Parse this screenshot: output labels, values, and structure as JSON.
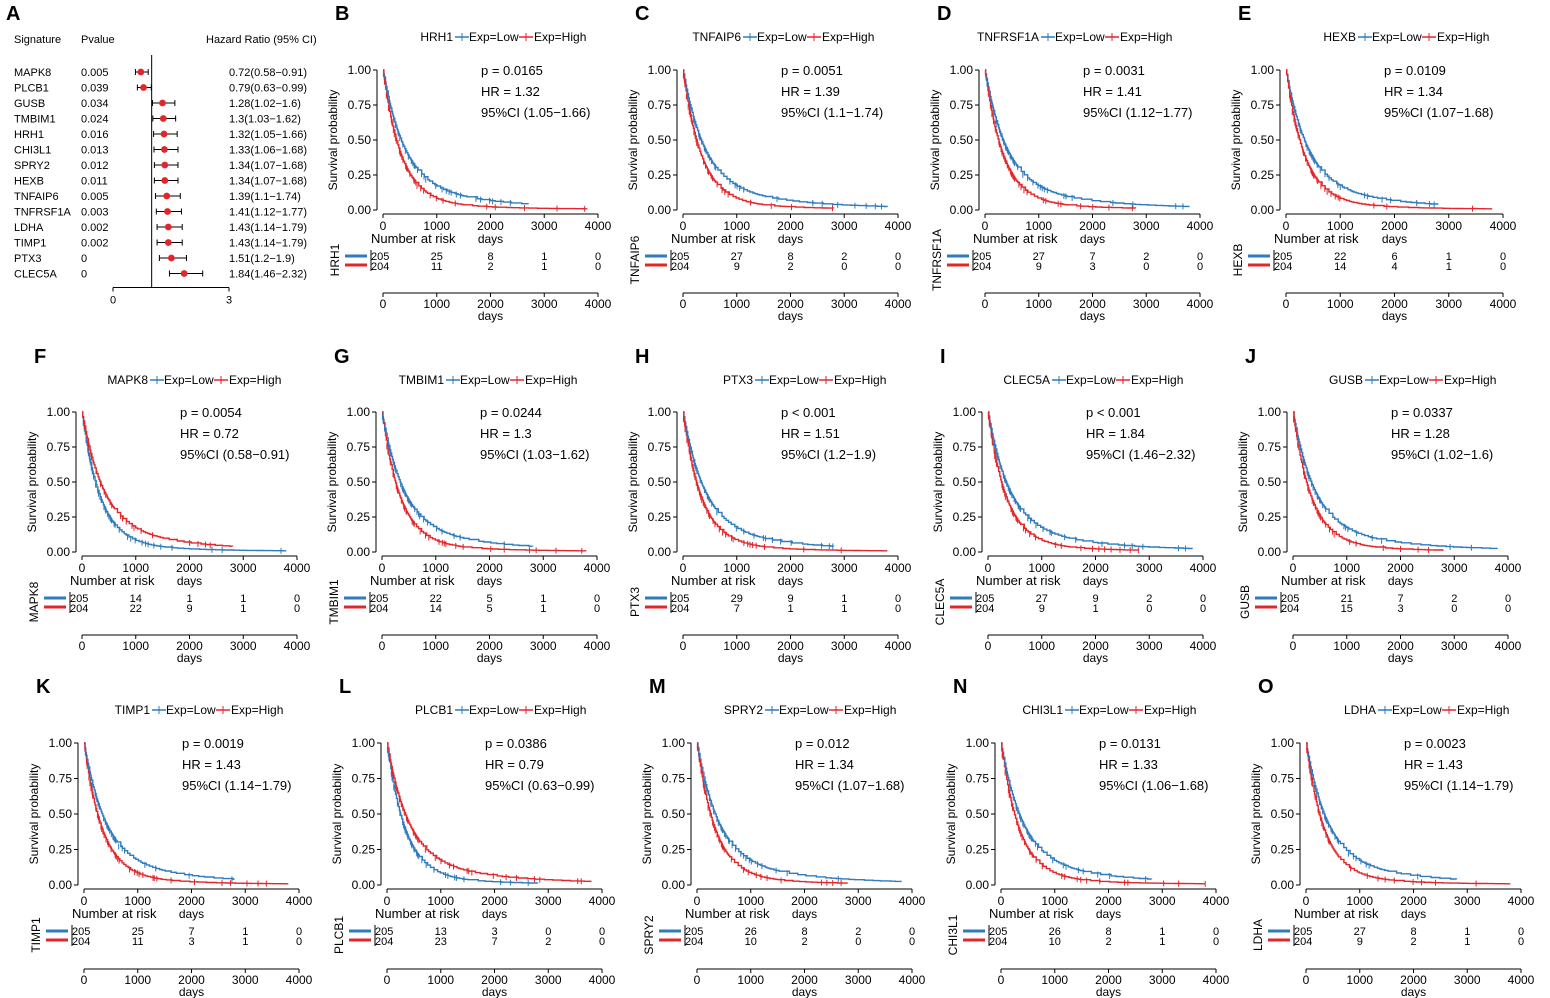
{
  "forest": {
    "letter": "A",
    "headers": {
      "signature": "Signature",
      "pvalue": "Pvalue",
      "hr": "Hazard Ratio (95% CI)"
    },
    "axis_ticks": [
      0,
      3
    ],
    "reference_line": 1,
    "rows": [
      {
        "signature": "MAPK8",
        "pvalue": "0.005",
        "hr_text": "0.72(0.58−0.91)",
        "hr": 0.72,
        "lo": 0.58,
        "hi": 0.91
      },
      {
        "signature": "PLCB1",
        "pvalue": "0.039",
        "hr_text": "0.79(0.63−0.99)",
        "hr": 0.79,
        "lo": 0.63,
        "hi": 0.99
      },
      {
        "signature": "GUSB",
        "pvalue": "0.034",
        "hr_text": "1.28(1.02−1.6)",
        "hr": 1.28,
        "lo": 1.02,
        "hi": 1.6
      },
      {
        "signature": "TMBIM1",
        "pvalue": "0.024",
        "hr_text": "1.3(1.03−1.62)",
        "hr": 1.3,
        "lo": 1.03,
        "hi": 1.62
      },
      {
        "signature": "HRH1",
        "pvalue": "0.016",
        "hr_text": "1.32(1.05−1.66)",
        "hr": 1.32,
        "lo": 1.05,
        "hi": 1.66
      },
      {
        "signature": "CHI3L1",
        "pvalue": "0.013",
        "hr_text": "1.33(1.06−1.68)",
        "hr": 1.33,
        "lo": 1.06,
        "hi": 1.68
      },
      {
        "signature": "SPRY2",
        "pvalue": "0.012",
        "hr_text": "1.34(1.07−1.68)",
        "hr": 1.34,
        "lo": 1.07,
        "hi": 1.68
      },
      {
        "signature": "HEXB",
        "pvalue": "0.011",
        "hr_text": "1.34(1.07−1.68)",
        "hr": 1.34,
        "lo": 1.07,
        "hi": 1.68
      },
      {
        "signature": "TNFAIP6",
        "pvalue": "0.005",
        "hr_text": "1.39(1.1−1.74)",
        "hr": 1.39,
        "lo": 1.1,
        "hi": 1.74
      },
      {
        "signature": "TNFRSF1A",
        "pvalue": "0.003",
        "hr_text": "1.41(1.12−1.77)",
        "hr": 1.41,
        "lo": 1.12,
        "hi": 1.77
      },
      {
        "signature": "LDHA",
        "pvalue": "0.002",
        "hr_text": "1.43(1.14−1.79)",
        "hr": 1.43,
        "lo": 1.14,
        "hi": 1.79
      },
      {
        "signature": "TIMP1",
        "pvalue": "0.002",
        "hr_text": "1.43(1.14−1.79)",
        "hr": 1.43,
        "lo": 1.14,
        "hi": 1.79
      },
      {
        "signature": "PTX3",
        "pvalue": "0",
        "hr_text": "1.51(1.2−1.9)",
        "hr": 1.51,
        "lo": 1.2,
        "hi": 1.9
      },
      {
        "signature": "CLEC5A",
        "pvalue": "0",
        "hr_text": "1.84(1.46−2.32)",
        "hr": 1.84,
        "lo": 1.46,
        "hi": 2.32
      }
    ]
  },
  "chart_data": [
    {
      "type": "line",
      "letter": "B",
      "gene": "HRH1",
      "p": "p = 0.0165",
      "hr": "HR = 1.32",
      "ci": "95%CI (1.05−1.66)",
      "risk_low": [
        "205",
        "25",
        "8",
        "1",
        "0"
      ],
      "risk_high": [
        "204",
        "11",
        "2",
        "1",
        "0"
      ],
      "high_better": false,
      "blue_end": 2700,
      "red_end": 3800
    },
    {
      "type": "line",
      "letter": "C",
      "gene": "TNFAIP6",
      "p": "p = 0.0051",
      "hr": "HR = 1.39",
      "ci": "95%CI (1.1−1.74)",
      "risk_low": [
        "205",
        "27",
        "8",
        "2",
        "0"
      ],
      "risk_high": [
        "204",
        "9",
        "2",
        "0",
        "0"
      ],
      "high_better": false,
      "blue_end": 3800,
      "red_end": 2800
    },
    {
      "type": "line",
      "letter": "D",
      "gene": "TNFRSF1A",
      "p": "p = 0.0031",
      "hr": "HR = 1.41",
      "ci": "95%CI (1.12−1.77)",
      "risk_low": [
        "205",
        "27",
        "7",
        "2",
        "0"
      ],
      "risk_high": [
        "204",
        "9",
        "3",
        "0",
        "0"
      ],
      "high_better": false,
      "blue_end": 3800,
      "red_end": 2800
    },
    {
      "type": "line",
      "letter": "E",
      "gene": "HEXB",
      "p": "p = 0.0109",
      "hr": "HR = 1.34",
      "ci": "95%CI (1.07−1.68)",
      "risk_low": [
        "205",
        "22",
        "6",
        "1",
        "0"
      ],
      "risk_high": [
        "204",
        "14",
        "4",
        "1",
        "0"
      ],
      "high_better": false,
      "blue_end": 2800,
      "red_end": 3800
    },
    {
      "type": "line",
      "letter": "F",
      "gene": "MAPK8",
      "p": "p = 0.0054",
      "hr": "HR = 0.72",
      "ci": "95%CI (0.58−0.91)",
      "risk_low": [
        "205",
        "14",
        "1",
        "1",
        "0"
      ],
      "risk_high": [
        "204",
        "22",
        "9",
        "1",
        "0"
      ],
      "high_better": true,
      "blue_end": 3800,
      "red_end": 2800
    },
    {
      "type": "line",
      "letter": "G",
      "gene": "TMBIM1",
      "p": "p = 0.0244",
      "hr": "HR = 1.3",
      "ci": "95%CI (1.03−1.62)",
      "risk_low": [
        "205",
        "22",
        "5",
        "1",
        "0"
      ],
      "risk_high": [
        "204",
        "14",
        "5",
        "1",
        "0"
      ],
      "high_better": false,
      "blue_end": 2800,
      "red_end": 3800
    },
    {
      "type": "line",
      "letter": "H",
      "gene": "PTX3",
      "p": "p < 0.001",
      "hr": "HR = 1.51",
      "ci": "95%CI (1.2−1.9)",
      "risk_low": [
        "205",
        "29",
        "9",
        "1",
        "0"
      ],
      "risk_high": [
        "204",
        "7",
        "1",
        "1",
        "0"
      ],
      "high_better": false,
      "blue_end": 2800,
      "red_end": 3800
    },
    {
      "type": "line",
      "letter": "I",
      "gene": "CLEC5A",
      "p": "p < 0.001",
      "hr": "HR = 1.84",
      "ci": "95%CI (1.46−2.32)",
      "risk_low": [
        "205",
        "27",
        "9",
        "2",
        "0"
      ],
      "risk_high": [
        "204",
        "9",
        "1",
        "0",
        "0"
      ],
      "high_better": false,
      "blue_end": 3800,
      "red_end": 2800
    },
    {
      "type": "line",
      "letter": "J",
      "gene": "GUSB",
      "p": "p = 0.0337",
      "hr": "HR = 1.28",
      "ci": "95%CI (1.02−1.6)",
      "risk_low": [
        "205",
        "21",
        "7",
        "2",
        "0"
      ],
      "risk_high": [
        "204",
        "15",
        "3",
        "0",
        "0"
      ],
      "high_better": false,
      "blue_end": 3800,
      "red_end": 2800
    },
    {
      "type": "line",
      "letter": "K",
      "gene": "TIMP1",
      "p": "p = 0.0019",
      "hr": "HR = 1.43",
      "ci": "95%CI (1.14−1.79)",
      "risk_low": [
        "205",
        "25",
        "7",
        "1",
        "0"
      ],
      "risk_high": [
        "204",
        "11",
        "3",
        "1",
        "0"
      ],
      "high_better": false,
      "blue_end": 2800,
      "red_end": 3800
    },
    {
      "type": "line",
      "letter": "L",
      "gene": "PLCB1",
      "p": "p = 0.0386",
      "hr": "HR = 0.79",
      "ci": "95%CI (0.63−0.99)",
      "risk_low": [
        "205",
        "13",
        "3",
        "0",
        "0"
      ],
      "risk_high": [
        "204",
        "23",
        "7",
        "2",
        "0"
      ],
      "high_better": true,
      "blue_end": 2800,
      "red_end": 3800
    },
    {
      "type": "line",
      "letter": "M",
      "gene": "SPRY2",
      "p": "p = 0.012",
      "hr": "HR = 1.34",
      "ci": "95%CI (1.07−1.68)",
      "risk_low": [
        "205",
        "26",
        "8",
        "2",
        "0"
      ],
      "risk_high": [
        "204",
        "10",
        "2",
        "0",
        "0"
      ],
      "high_better": false,
      "blue_end": 3800,
      "red_end": 2800
    },
    {
      "type": "line",
      "letter": "N",
      "gene": "CHI3L1",
      "p": "p = 0.0131",
      "hr": "HR = 1.33",
      "ci": "95%CI (1.06−1.68)",
      "risk_low": [
        "205",
        "26",
        "8",
        "1",
        "0"
      ],
      "risk_high": [
        "204",
        "10",
        "2",
        "1",
        "0"
      ],
      "high_better": false,
      "blue_end": 2800,
      "red_end": 3800
    },
    {
      "type": "line",
      "letter": "O",
      "gene": "LDHA",
      "p": "p = 0.0023",
      "hr": "HR = 1.43",
      "ci": "95%CI (1.14−1.79)",
      "risk_low": [
        "205",
        "27",
        "8",
        "1",
        "0"
      ],
      "risk_high": [
        "204",
        "9",
        "2",
        "1",
        "0"
      ],
      "high_better": false,
      "blue_end": 2800,
      "red_end": 3800
    }
  ],
  "labels": {
    "legend_low": "Exp=Low",
    "legend_high": "Exp=High",
    "ylabel": "Survival probability",
    "xlabel": "days",
    "risk_title": "Number at risk",
    "y_ticks": [
      "1.00",
      "0.75",
      "0.50",
      "0.25",
      "0.00"
    ],
    "x_ticks": [
      "0",
      "1000",
      "2000",
      "3000",
      "4000"
    ],
    "x_range": [
      0,
      4000
    ],
    "y_range": [
      0,
      1
    ]
  },
  "colors": {
    "low": "#2e7bbf",
    "high": "#e3262b",
    "axis": "#000000"
  }
}
